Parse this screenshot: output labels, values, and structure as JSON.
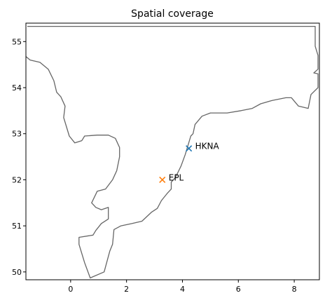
{
  "chart_data": {
    "type": "scatter",
    "title": "Spatial coverage",
    "xlim": [
      -1.6,
      8.9
    ],
    "ylim": [
      49.83,
      55.4
    ],
    "xticks": [
      0,
      2,
      4,
      6,
      8
    ],
    "yticks": [
      50,
      51,
      52,
      53,
      54,
      55
    ],
    "grid": false,
    "coastline_color": "#666666",
    "coastline": [
      [
        -1.55,
        55.33
      ],
      [
        8.75,
        55.33
      ],
      [
        8.75,
        54.9
      ],
      [
        8.85,
        54.7
      ],
      [
        8.85,
        54.4
      ],
      [
        8.7,
        54.32
      ],
      [
        8.85,
        54.3
      ],
      [
        8.85,
        54.0
      ],
      [
        8.6,
        53.85
      ],
      [
        8.5,
        53.55
      ],
      [
        8.15,
        53.6
      ],
      [
        7.9,
        53.78
      ],
      [
        7.7,
        53.78
      ],
      [
        7.2,
        53.72
      ],
      [
        6.8,
        53.65
      ],
      [
        6.5,
        53.55
      ],
      [
        6.1,
        53.5
      ],
      [
        5.6,
        53.45
      ],
      [
        5.0,
        53.45
      ],
      [
        4.7,
        53.38
      ],
      [
        4.45,
        53.2
      ],
      [
        4.38,
        53.0
      ],
      [
        4.3,
        52.95
      ],
      [
        4.1,
        52.55
      ],
      [
        3.95,
        52.3
      ],
      [
        3.75,
        52.05
      ],
      [
        3.6,
        51.95
      ],
      [
        3.6,
        51.8
      ],
      [
        3.45,
        51.7
      ],
      [
        3.25,
        51.55
      ],
      [
        3.1,
        51.38
      ],
      [
        2.9,
        51.3
      ],
      [
        2.55,
        51.1
      ],
      [
        2.2,
        51.05
      ],
      [
        1.8,
        51.0
      ],
      [
        1.55,
        50.92
      ],
      [
        1.5,
        50.6
      ],
      [
        1.4,
        50.45
      ],
      [
        1.2,
        50.0
      ],
      [
        0.7,
        49.87
      ],
      [
        0.5,
        50.2
      ],
      [
        0.3,
        50.6
      ],
      [
        0.3,
        50.75
      ],
      [
        0.8,
        50.8
      ],
      [
        0.9,
        50.9
      ],
      [
        1.1,
        51.05
      ],
      [
        1.35,
        51.15
      ],
      [
        1.35,
        51.4
      ],
      [
        1.1,
        51.35
      ],
      [
        0.9,
        51.4
      ],
      [
        0.75,
        51.5
      ],
      [
        0.95,
        51.75
      ],
      [
        1.25,
        51.8
      ],
      [
        1.5,
        52.0
      ],
      [
        1.65,
        52.2
      ],
      [
        1.75,
        52.5
      ],
      [
        1.75,
        52.7
      ],
      [
        1.6,
        52.9
      ],
      [
        1.35,
        52.97
      ],
      [
        0.95,
        52.97
      ],
      [
        0.5,
        52.95
      ],
      [
        0.4,
        52.85
      ],
      [
        0.15,
        52.8
      ],
      [
        -0.05,
        52.95
      ],
      [
        -0.25,
        53.35
      ],
      [
        -0.2,
        53.6
      ],
      [
        -0.35,
        53.8
      ],
      [
        -0.5,
        53.9
      ],
      [
        -0.6,
        54.15
      ],
      [
        -0.8,
        54.4
      ],
      [
        -1.1,
        54.55
      ],
      [
        -1.45,
        54.6
      ],
      [
        -1.75,
        54.75
      ],
      [
        -1.85,
        55.0
      ],
      [
        -1.75,
        55.35
      ]
    ],
    "series": [
      {
        "name": "HKNA",
        "x": 4.23,
        "y": 52.68,
        "color": "#1f77b4"
      },
      {
        "name": "EPL",
        "x": 3.28,
        "y": 52.0,
        "color": "#ff7f0e"
      }
    ]
  }
}
